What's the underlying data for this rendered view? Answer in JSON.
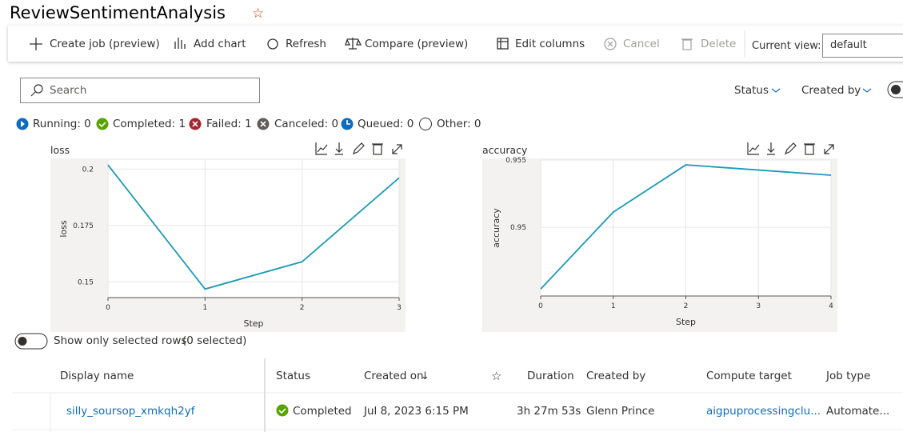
{
  "header": {
    "title": "ReviewSentimentAnalysis"
  },
  "toolbar": {
    "items": [
      "Create job (preview)",
      "Add chart",
      "Refresh",
      "Compare (preview)",
      "Edit columns",
      "Cancel",
      "Delete"
    ],
    "view_label": "Current view:",
    "view_value": "default"
  },
  "search": {
    "placeholder": "Search"
  },
  "filters": [
    "Status",
    "Created by"
  ],
  "status_counts": [
    "Running: 0",
    "Completed: 1",
    "Failed: 1",
    "Canceled: 0",
    "Queued: 0",
    "Other: 0"
  ],
  "chart_data": [
    {
      "type": "line",
      "title": "loss",
      "x_label": "Step",
      "y_label": "loss",
      "x": [
        0,
        1,
        2,
        3
      ],
      "values": [
        0.2018,
        0.1468,
        0.1589,
        0.1961
      ],
      "color": "#1a9bb5",
      "xlim": [
        0,
        3
      ],
      "xticks": [
        0,
        1,
        2,
        3
      ],
      "ylim": [
        0.143,
        0.204
      ],
      "yticks": [
        0.15,
        0.175,
        0.2
      ],
      "grid": true
    },
    {
      "type": "line",
      "title": "accuracy",
      "x_label": "Step",
      "y_label": "accuracy",
      "x": [
        0,
        1,
        2,
        4
      ],
      "values": [
        0.94542,
        0.95113,
        0.95464,
        0.95387
      ],
      "color": "#1a9bb5",
      "xlim": [
        0,
        4
      ],
      "xticks": [
        0,
        1,
        2,
        3,
        4
      ],
      "ylim": [
        0.9449,
        0.955
      ],
      "yticks": [
        0.95,
        0.955
      ],
      "grid": true
    }
  ],
  "toggle": {
    "label": "Show only selected rows",
    "count": "(0 selected)"
  },
  "table": {
    "columns": [
      "Display name",
      "Status",
      "Created on",
      "Duration",
      "Created by",
      "Compute target",
      "Job type"
    ],
    "rows": [
      [
        "silly_soursop_xmkqh2yf",
        "Completed",
        "Jul 8, 2023 6:15 PM",
        "3h 27m 53s",
        "Glenn Prince",
        "aigpuprocessingclu...",
        "Automate..."
      ]
    ]
  }
}
